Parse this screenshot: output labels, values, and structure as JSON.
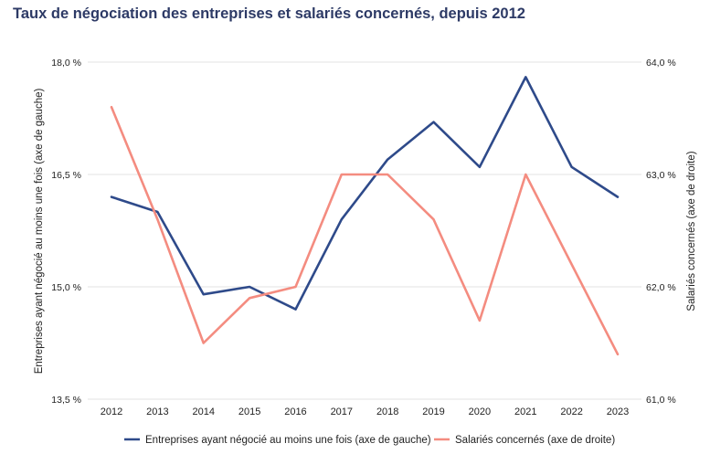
{
  "chart_data": {
    "type": "line",
    "title": "Taux de négociation des entreprises et salariés concernés, depuis 2012",
    "categories": [
      "2012",
      "2013",
      "2014",
      "2015",
      "2016",
      "2017",
      "2018",
      "2019",
      "2020",
      "2021",
      "2022",
      "2023"
    ],
    "ylabel_left": "Entreprises ayant négocié au moins une fois (axe de gauche)",
    "ylabel_right": "Salariés concernés (axe de droite)",
    "ylim_left": [
      13.5,
      18.0
    ],
    "ylim_right": [
      61.0,
      64.0
    ],
    "yticks_left": [
      {
        "value": 18.0,
        "label": "18,0 %"
      },
      {
        "value": 16.5,
        "label": "16,5 %"
      },
      {
        "value": 15.0,
        "label": "15,0 %"
      },
      {
        "value": 13.5,
        "label": "13,5 %"
      }
    ],
    "yticks_right": [
      {
        "value": 64.0,
        "label": "64,0 %"
      },
      {
        "value": 63.0,
        "label": "63,0 %"
      },
      {
        "value": 62.0,
        "label": "62,0 %"
      },
      {
        "value": 61.0,
        "label": "61,0 %"
      }
    ],
    "grid": true,
    "legend_position": "bottom",
    "series": [
      {
        "name": "Entreprises ayant négocié au moins une fois (axe de gauche)",
        "axis": "left",
        "color": "#2e4a8a",
        "values": [
          16.2,
          16.0,
          14.9,
          15.0,
          14.7,
          15.9,
          16.7,
          17.2,
          16.6,
          17.8,
          16.6,
          16.2
        ]
      },
      {
        "name": "Salariés concernés (axe de droite)",
        "axis": "right",
        "color": "#f48c80",
        "values": [
          63.6,
          62.6,
          61.5,
          61.9,
          62.0,
          63.0,
          63.0,
          62.6,
          61.7,
          63.0,
          62.2,
          61.4
        ]
      }
    ]
  }
}
